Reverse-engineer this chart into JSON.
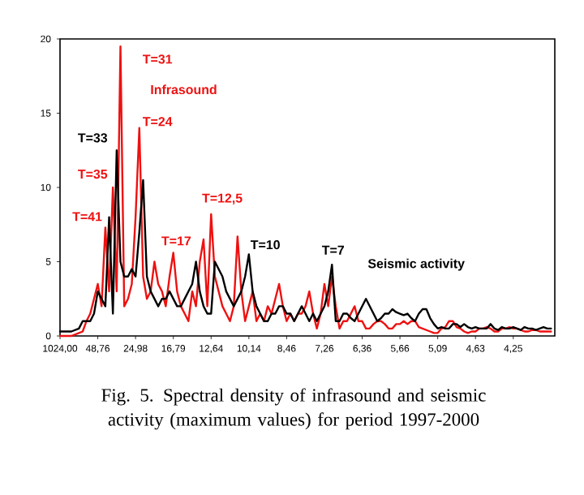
{
  "chart_data": {
    "type": "line",
    "title": "Fig. 5. Spectral density of infrasound and seismic activity (maximum values) for period 1997-2000",
    "categories": [
      "1024,00",
      null,
      null,
      null,
      null,
      null,
      null,
      null,
      null,
      null,
      "48,76",
      null,
      null,
      null,
      null,
      null,
      null,
      null,
      null,
      null,
      "24,98",
      null,
      null,
      null,
      null,
      null,
      null,
      null,
      null,
      null,
      "16,79",
      null,
      null,
      null,
      null,
      null,
      null,
      null,
      null,
      null,
      "12,64",
      null,
      null,
      null,
      null,
      null,
      null,
      null,
      null,
      null,
      "10,14",
      null,
      null,
      null,
      null,
      null,
      null,
      null,
      null,
      null,
      "8,46",
      null,
      null,
      null,
      null,
      null,
      null,
      null,
      null,
      null,
      "7,26",
      null,
      null,
      null,
      null,
      null,
      null,
      null,
      null,
      null,
      "6,36",
      null,
      null,
      null,
      null,
      null,
      null,
      null,
      null,
      null,
      "5,66",
      null,
      null,
      null,
      null,
      null,
      null,
      null,
      null,
      null,
      "5,09",
      null,
      null,
      null,
      null,
      null,
      null,
      null,
      null,
      null,
      "4,63",
      null,
      null,
      null,
      null,
      null,
      null,
      null,
      null,
      null,
      "4,25",
      null,
      null,
      null,
      null,
      null,
      null,
      null,
      null,
      null,
      null
    ],
    "ylim": [
      0,
      20
    ],
    "yticks": [
      0,
      5,
      10,
      15,
      20
    ],
    "grid": false,
    "legend": false,
    "marker": "none",
    "line_style": "solid",
    "series": [
      {
        "name": "Infrasound",
        "color": "#ee1111",
        "values": [
          0,
          0,
          0,
          0,
          0.1,
          0.2,
          0.3,
          1,
          1.5,
          2.5,
          3.5,
          2,
          7.3,
          3,
          10,
          3,
          19.5,
          2,
          2.5,
          3.5,
          8,
          14,
          4,
          2.5,
          3,
          5,
          3.5,
          3,
          2,
          4,
          5.6,
          3,
          2,
          1.5,
          1,
          3,
          2,
          5,
          6.5,
          2,
          8.2,
          4,
          3,
          2,
          1.5,
          1,
          2,
          6.7,
          3,
          1,
          2,
          3,
          1,
          1.5,
          1,
          2,
          1.5,
          2.5,
          3.5,
          2,
          1,
          1.5,
          1,
          1.5,
          1.5,
          2,
          3,
          1.5,
          0.5,
          1.5,
          3.5,
          2,
          4,
          2,
          0.5,
          1,
          1,
          1.5,
          2,
          1,
          1,
          0.5,
          0.5,
          0.8,
          1,
          1,
          0.8,
          0.5,
          0.5,
          0.8,
          0.8,
          1,
          0.8,
          1,
          1,
          0.6,
          0.5,
          0.4,
          0.3,
          0.2,
          0.2,
          0.5,
          0.6,
          1,
          1,
          0.6,
          0.5,
          0.3,
          0.2,
          0.3,
          0.3,
          0.5,
          0.5,
          0.6,
          0.5,
          0.3,
          0.3,
          0.5,
          0.5,
          0.6,
          0.5,
          0.5,
          0.4,
          0.3,
          0.3,
          0.4,
          0.4,
          0.3,
          0.3,
          0.3,
          0.3
        ]
      },
      {
        "name": "Seismic activity",
        "color": "#000000",
        "values": [
          0.3,
          0.3,
          0.3,
          0.3,
          0.4,
          0.5,
          1,
          1,
          1,
          1.5,
          3,
          2.5,
          2,
          8,
          1.5,
          12.5,
          5,
          4,
          4,
          4.5,
          4,
          7,
          10.5,
          4,
          3,
          2.5,
          2,
          2.5,
          2.5,
          3,
          2.5,
          2,
          2,
          2.5,
          3,
          3.5,
          5,
          3,
          2,
          1.5,
          1.5,
          5,
          4.5,
          4,
          3,
          2.5,
          2,
          2.5,
          3,
          4,
          5.5,
          3,
          2,
          1.5,
          1,
          1,
          1.5,
          1.5,
          2,
          2,
          1.5,
          1.5,
          1,
          1.5,
          2,
          1.5,
          1,
          1.5,
          1,
          1.5,
          2,
          3,
          4.8,
          1,
          1,
          1.5,
          1.5,
          1.2,
          1,
          1.5,
          2,
          2.5,
          2,
          1.5,
          1,
          1.2,
          1.5,
          1.5,
          1.8,
          1.6,
          1.5,
          1.4,
          1.5,
          1.2,
          1,
          1.5,
          1.8,
          1.8,
          1.2,
          0.8,
          0.5,
          0.6,
          0.5,
          0.5,
          0.8,
          0.8,
          0.6,
          0.8,
          0.6,
          0.5,
          0.6,
          0.5,
          0.5,
          0.5,
          0.8,
          0.5,
          0.4,
          0.6,
          0.5,
          0.5,
          0.6,
          0.5,
          0.4,
          0.6,
          0.5,
          0.5,
          0.4,
          0.5,
          0.6,
          0.5,
          0.5
        ]
      }
    ],
    "annotations": [
      "T=31",
      "T=24",
      "T=33",
      "T=35",
      "T=41",
      "T=17",
      "T=12,5",
      "T=10",
      "T=7"
    ]
  }
}
